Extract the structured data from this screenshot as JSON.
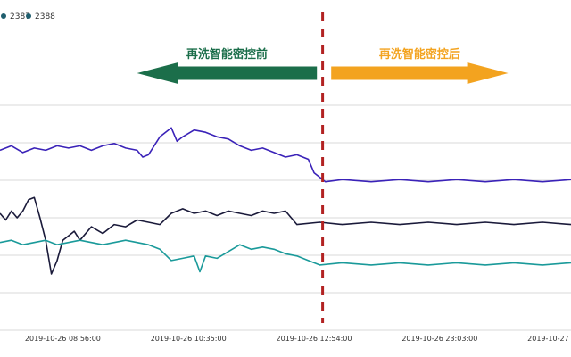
{
  "chart_data": {
    "type": "line",
    "title": "",
    "xlabel": "",
    "ylabel": "",
    "grid": "horizontal",
    "legend_position": "top-left",
    "x_ticks": [
      "2019-10-26 08:56:00",
      "2019-10-26 10:35:00",
      "2019-10-26 12:54:00",
      "2019-10-26 23:03:00",
      "2019-10-27"
    ],
    "x_range": [
      0,
      100
    ],
    "y_range": [
      0,
      100
    ],
    "legend": [
      {
        "name": "2387",
        "color": "#1f5e6e"
      },
      {
        "name": "2388",
        "color": "#1f5e6e"
      }
    ],
    "divider": {
      "x": 56.5,
      "color": "#b22222"
    },
    "annotations": [
      {
        "label": "再洗智能密控前",
        "direction": "left",
        "color": "#1b6e4a",
        "x_from": 55.5,
        "x_to": 24
      },
      {
        "label": "再洗智能密控后",
        "direction": "right",
        "color": "#f3a31f",
        "x_from": 58,
        "x_to": 89
      }
    ],
    "series": [
      {
        "color": "#3a22b8",
        "x": [
          0,
          2,
          4,
          6,
          8,
          10,
          12,
          14,
          16,
          18,
          20,
          22,
          24,
          25,
          26,
          28,
          30,
          31,
          32,
          34,
          36,
          38,
          40,
          42,
          44,
          46,
          48,
          50,
          52,
          54,
          55,
          56,
          57,
          60,
          65,
          70,
          75,
          80,
          85,
          90,
          95,
          100
        ],
        "y": [
          80,
          82,
          79,
          81,
          80,
          82,
          81,
          82,
          80,
          82,
          83,
          81,
          80,
          77,
          78,
          86,
          90,
          84,
          86,
          89,
          88,
          86,
          85,
          82,
          80,
          81,
          79,
          77,
          78,
          76,
          70,
          68,
          66,
          67,
          66,
          67,
          66,
          67,
          66,
          67,
          66,
          67
        ]
      },
      {
        "color": "#1a1a3a",
        "x": [
          0,
          1,
          2,
          3,
          4,
          5,
          6,
          7,
          8,
          9,
          10,
          11,
          12,
          13,
          14,
          16,
          18,
          20,
          22,
          24,
          26,
          28,
          30,
          32,
          34,
          36,
          38,
          40,
          42,
          44,
          46,
          48,
          50,
          52,
          56,
          60,
          65,
          70,
          75,
          80,
          85,
          90,
          95,
          100
        ],
        "y": [
          52,
          49,
          53,
          50,
          53,
          58,
          59,
          50,
          40,
          25,
          31,
          40,
          42,
          44,
          40,
          46,
          43,
          47,
          46,
          49,
          48,
          47,
          52,
          54,
          52,
          53,
          51,
          53,
          52,
          51,
          53,
          52,
          53,
          47,
          48,
          47,
          48,
          47,
          48,
          47,
          48,
          47,
          48,
          47
        ]
      },
      {
        "color": "#1a9a9a",
        "x": [
          0,
          2,
          4,
          6,
          8,
          10,
          12,
          14,
          16,
          18,
          20,
          22,
          24,
          26,
          28,
          30,
          32,
          34,
          35,
          36,
          38,
          40,
          42,
          44,
          46,
          48,
          50,
          52,
          54,
          56,
          60,
          65,
          70,
          75,
          80,
          85,
          90,
          95,
          100
        ],
        "y": [
          39,
          40,
          38,
          39,
          40,
          38,
          39,
          40,
          39,
          38,
          39,
          40,
          39,
          38,
          36,
          31,
          32,
          33,
          26,
          33,
          32,
          35,
          38,
          36,
          37,
          36,
          34,
          33,
          31,
          29,
          30,
          29,
          30,
          29,
          30,
          29,
          30,
          29,
          30
        ]
      }
    ]
  }
}
